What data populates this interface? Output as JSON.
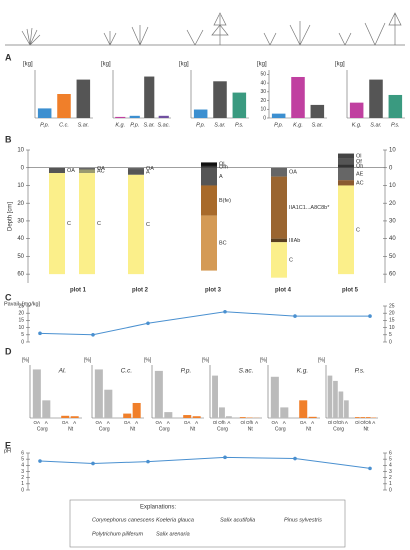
{
  "panel_labels": [
    "A",
    "B",
    "C",
    "D",
    "E"
  ],
  "panel_a": [
    {
      "unit": "[kg]",
      "categories": [
        "P.p.",
        "C.c.",
        "S.ar."
      ],
      "values": [
        2,
        5,
        8
      ],
      "colors": [
        "#3c8fd0",
        "#f07f2a",
        "#555555"
      ],
      "ylim": [
        0,
        10
      ]
    },
    {
      "unit": "[kg]",
      "categories": [
        "K.g.",
        "P.p.",
        "S.ar.",
        "S.ac."
      ],
      "values": [
        0.5,
        1,
        19,
        1
      ],
      "colors": [
        "#c040a0",
        "#3c8fd0",
        "#555555",
        "#7050a0"
      ],
      "ylim": [
        0,
        22
      ]
    },
    {
      "unit": "[kg]",
      "categories": [
        "P.p.",
        "S.ar.",
        "P.s."
      ],
      "values": [
        3,
        13,
        9
      ],
      "colors": [
        "#3c8fd0",
        "#555555",
        "#3a9a80"
      ],
      "ylim": [
        0,
        17
      ]
    },
    {
      "unit": "[kg]",
      "categories": [
        "P.p.",
        "K.g.",
        "S.ar."
      ],
      "values": [
        5,
        47,
        15
      ],
      "colors": [
        "#3c8fd0",
        "#c040a0",
        "#555555"
      ],
      "ylim": [
        0,
        55
      ],
      "yticks": [
        0,
        10,
        20,
        30,
        40,
        50
      ]
    },
    {
      "unit": "[kg]",
      "categories": [
        "K.g.",
        "S.ar.",
        "P.s."
      ],
      "values": [
        8,
        20,
        12
      ],
      "colors": [
        "#c040a0",
        "#555555",
        "#3a9a80"
      ],
      "ylim": [
        0,
        25
      ]
    }
  ],
  "panel_b": {
    "ylabel": "Depth [cm]",
    "ylim": [
      -10,
      65
    ],
    "yticks": [
      {
        "value": -10,
        "label": "10"
      },
      0,
      10,
      20,
      30,
      40,
      50,
      60
    ],
    "plots": [
      {
        "name": "plot 1",
        "columns": [
          [
            {
              "label": "OA",
              "top": 0,
              "bottom": 3,
              "color": "#555555"
            },
            {
              "label": "C",
              "top": 3,
              "bottom": 60,
              "color": "#fbef8a"
            }
          ],
          [
            {
              "label": "OA",
              "top": 0,
              "bottom": 1,
              "color": "#666666"
            },
            {
              "label": "AC",
              "top": 1,
              "bottom": 3,
              "color": "#9a9a70"
            },
            {
              "label": "C",
              "top": 3,
              "bottom": 60,
              "color": "#fbef8a"
            }
          ]
        ]
      },
      {
        "name": "plot 2",
        "columns": [
          [
            {
              "label": "OA",
              "top": 0,
              "bottom": 1,
              "color": "#666666"
            },
            {
              "label": "A",
              "top": 1,
              "bottom": 4,
              "color": "#555555"
            },
            {
              "label": "C",
              "top": 4,
              "bottom": 60,
              "color": "#fbef8a"
            }
          ]
        ]
      },
      {
        "name": "plot 3",
        "columns": [
          [
            {
              "label": "Ol",
              "top": -3,
              "bottom": -1,
              "color": "#111111"
            },
            {
              "label": "Ofh",
              "top": -1,
              "bottom": 0,
              "color": "#333333"
            },
            {
              "label": "A",
              "top": 0,
              "bottom": 10,
              "color": "#555555"
            },
            {
              "label": "B(fe)",
              "top": 10,
              "bottom": 27,
              "color": "#a86a2a"
            },
            {
              "label": "BC",
              "top": 27,
              "bottom": 58,
              "color": "#d49a55"
            }
          ]
        ]
      },
      {
        "name": "plot 4",
        "columns": [
          [
            {
              "label": "OA",
              "top": 0,
              "bottom": 5,
              "color": "#666666"
            },
            {
              "label": "IIA1C1...A8C8b*",
              "top": 5,
              "bottom": 40,
              "color": "#9a6530"
            },
            {
              "label": "IIIAb",
              "top": 40,
              "bottom": 42,
              "color": "#5a4020"
            },
            {
              "label": "C",
              "top": 42,
              "bottom": 62,
              "color": "#fbef8a"
            }
          ]
        ]
      },
      {
        "name": "plot 5",
        "columns": [
          [
            {
              "label": "Ol",
              "top": -8,
              "bottom": -5,
              "color": "#444444"
            },
            {
              "label": "Of",
              "top": -5,
              "bottom": -2,
              "color": "#555555"
            },
            {
              "label": "Oh",
              "top": -2,
              "bottom": 0,
              "color": "#333333"
            },
            {
              "label": "AE",
              "top": 0,
              "bottom": 7,
              "color": "#666666"
            },
            {
              "label": "AC",
              "top": 7,
              "bottom": 10,
              "color": "#8a5a30"
            },
            {
              "label": "C",
              "top": 10,
              "bottom": 60,
              "color": "#fbef8a"
            }
          ]
        ]
      }
    ]
  },
  "panel_c": {
    "ylabel": "Pavail. [mg/kg]",
    "values": [
      6,
      5,
      13,
      21,
      18,
      18
    ],
    "ylim": [
      0,
      25
    ],
    "yticks": [
      0,
      5,
      10,
      15,
      20,
      25
    ],
    "color": "#4a90d0"
  },
  "panel_d": [
    {
      "name": "Al.",
      "unit": "[%]",
      "ylim": [
        0,
        1.2
      ],
      "groups": [
        {
          "label": "Corg",
          "categories": [
            "OA",
            "A"
          ],
          "values": [
            1.1,
            0.4
          ],
          "color": "#bbbbbb"
        },
        {
          "label": "Nt",
          "categories": [
            "OA",
            "A"
          ],
          "values": [
            0.05,
            0.04
          ],
          "color": "#f07f2a"
        }
      ]
    },
    {
      "name": "C.c.",
      "unit": "[%]",
      "ylim": [
        0.23,
        0.29
      ],
      "groups": [
        {
          "label": "Corg",
          "categories": [
            "OA",
            "A"
          ],
          "values": [
            0.285,
            0.262
          ],
          "color": "#bbbbbb"
        },
        {
          "label": "Nt",
          "categories": [
            "OA",
            "A"
          ],
          "values": [
            0.235,
            0.247
          ],
          "color": "#f07f2a"
        }
      ]
    },
    {
      "name": "P.p.",
      "unit": "[%]",
      "ylim": [
        0,
        9
      ],
      "groups": [
        {
          "label": "Corg",
          "categories": [
            "OA",
            "A"
          ],
          "values": [
            8,
            1
          ],
          "color": "#bbbbbb"
        },
        {
          "label": "Nt",
          "categories": [
            "OA",
            "A"
          ],
          "values": [
            0.5,
            0.3
          ],
          "color": "#f07f2a"
        }
      ]
    },
    {
      "name": "S.ac.",
      "unit": "[%]",
      "ylim": [
        0,
        60
      ],
      "groups": [
        {
          "label": "Corg",
          "categories": [
            "Ol",
            "Ofh",
            "A"
          ],
          "values": [
            48,
            12,
            2
          ],
          "color": "#bbbbbb"
        },
        {
          "label": "Nt",
          "categories": [
            "Ol",
            "Ofh",
            "A"
          ],
          "values": [
            1,
            0.5,
            0.2
          ],
          "color": "#f07f2a"
        }
      ]
    },
    {
      "name": "K.g.",
      "unit": "[%]",
      "ylim": [
        0,
        90
      ],
      "groups": [
        {
          "label": "Corg",
          "categories": [
            "OA",
            "A"
          ],
          "values": [
            70,
            18
          ],
          "color": "#bbbbbb"
        },
        {
          "label": "Nt",
          "categories": [
            "OA",
            "A"
          ],
          "values": [
            30,
            2
          ],
          "color": "#f07f2a"
        }
      ]
    },
    {
      "name": "P.s.",
      "unit": "[%]",
      "ylim": [
        0,
        60
      ],
      "groups": [
        {
          "label": "Corg",
          "categories": [
            "Ol",
            "Of",
            "Oh",
            "A"
          ],
          "values": [
            48,
            42,
            30,
            20
          ],
          "color": "#bbbbbb"
        },
        {
          "label": "Nt",
          "categories": [
            "Ol",
            "Of",
            "Oh",
            "A"
          ],
          "values": [
            1,
            1,
            1,
            0.5
          ],
          "color": "#f07f2a"
        }
      ]
    }
  ],
  "panel_e": {
    "ylabel": "pH",
    "values": [
      4.7,
      4.3,
      4.6,
      5.3,
      5.1,
      3.5
    ],
    "ylim": [
      0,
      6
    ],
    "yticks": [
      0,
      1,
      2,
      3,
      4,
      5,
      6
    ],
    "color": "#4a90d0"
  },
  "explanations": {
    "title": "Explanations:",
    "items": [
      "Corynephorus canescens",
      "Koeleria glauca",
      "Salix acutifolia",
      "Pinus sylvestris",
      "Polytrichum piliferum",
      "Salix arenaria"
    ]
  }
}
